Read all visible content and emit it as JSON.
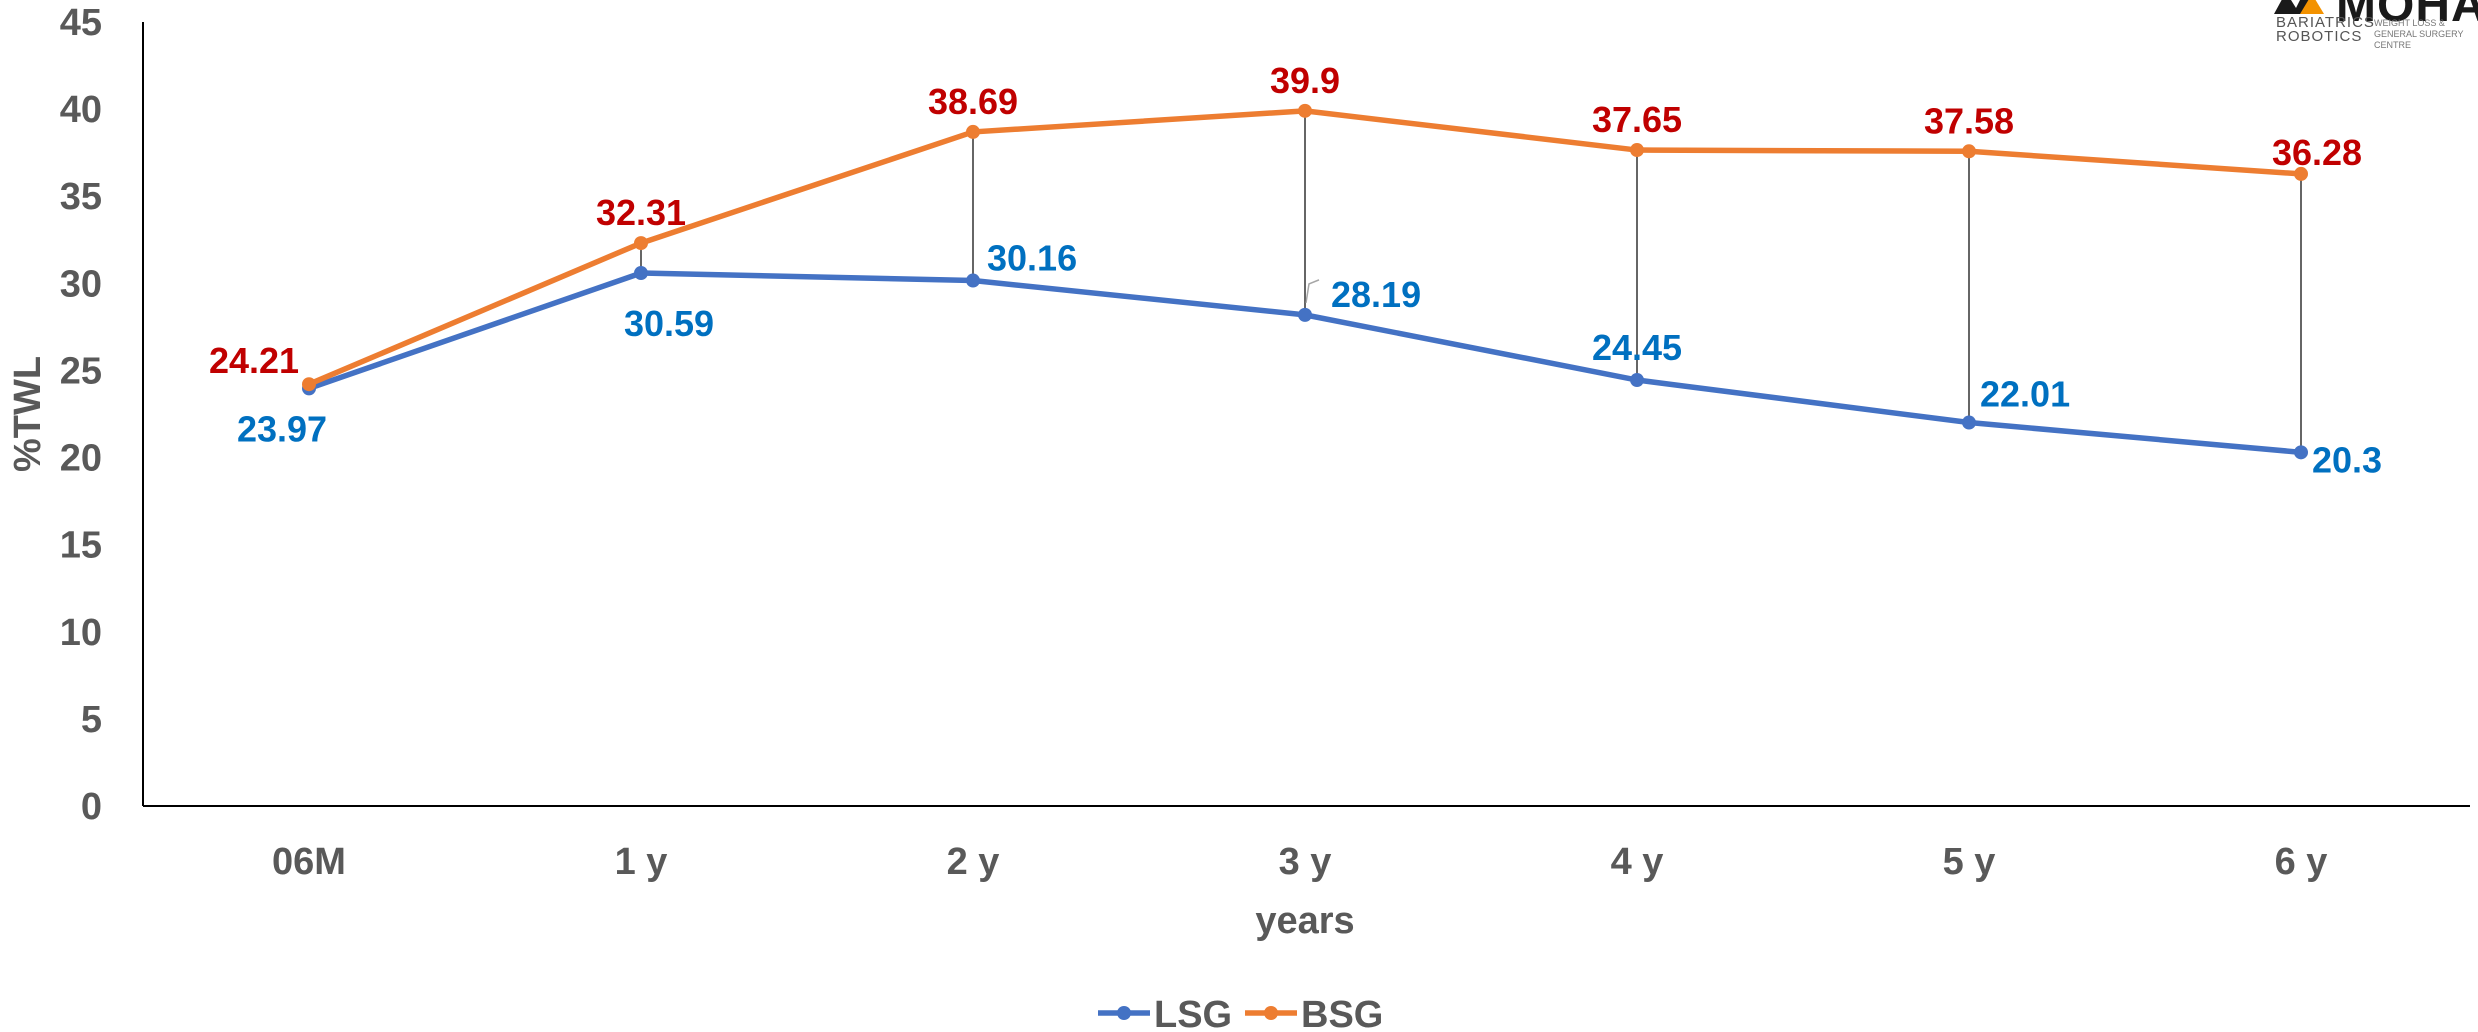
{
  "logo": {
    "brand": "MOHA",
    "line1": "BARIATRICS",
    "line2": "ROBOTICS",
    "tagline": "WEIGHT LOSS & GENERAL SURGERY CENTRE"
  },
  "chart_data": {
    "type": "line",
    "title": "",
    "xlabel": "years",
    "ylabel": "%TWL",
    "ylim": [
      0,
      45
    ],
    "yticks": [
      "0",
      "5",
      "10",
      "15",
      "20",
      "25",
      "30",
      "35",
      "40",
      "45"
    ],
    "categories": [
      "06M",
      "1 y",
      "2 y",
      "3 y",
      "4 y",
      "5 y",
      "6 y"
    ],
    "grid": false,
    "legend_position": "bottom",
    "drop_lines": true,
    "series": [
      {
        "name": "LSG",
        "color": "#4472C4",
        "label_color": "#0070C0",
        "values": [
          23.97,
          30.59,
          30.16,
          28.19,
          24.45,
          22.01,
          20.3
        ],
        "labels": [
          "23.97",
          "30.59",
          "30.16",
          "28.19",
          "24.45",
          "22.01",
          "20.3"
        ]
      },
      {
        "name": "BSG",
        "color": "#ED7D31",
        "label_color": "#C00000",
        "values": [
          24.21,
          32.31,
          38.69,
          39.9,
          37.65,
          37.58,
          36.28
        ],
        "labels": [
          "24.21",
          "32.31",
          "38.69",
          "39.9",
          "37.65",
          "37.58",
          "36.28"
        ]
      }
    ]
  }
}
